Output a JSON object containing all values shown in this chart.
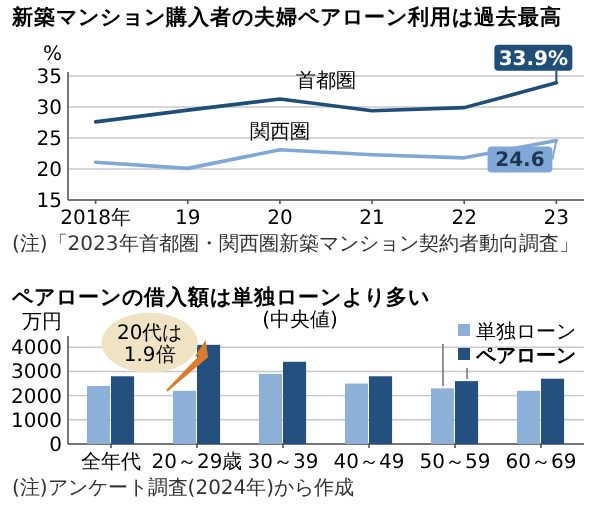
{
  "chart_data": [
    {
      "type": "line",
      "title": "新築マンション購入者の夫婦ペアローン利用は過去最高",
      "ylabel": "%",
      "categories": [
        "2018年",
        "19",
        "20",
        "21",
        "22",
        "23"
      ],
      "ylim": [
        15,
        35
      ],
      "yticks": [
        15,
        20,
        25,
        30,
        35
      ],
      "grid": "y",
      "marker": "none",
      "line_style": "solid",
      "series": [
        {
          "name": "首都圏",
          "color": "#1f4e79",
          "values": [
            27.6,
            29.5,
            31.3,
            29.4,
            29.9,
            33.9
          ],
          "value_labels": [
            null,
            null,
            null,
            null,
            null,
            "33.9%"
          ]
        },
        {
          "name": "関西圏",
          "color": "#7fa8d6",
          "values": [
            21.1,
            20.1,
            23.1,
            22.3,
            21.8,
            24.6
          ],
          "value_labels": [
            null,
            null,
            null,
            null,
            null,
            "24.6"
          ]
        }
      ],
      "annotations": [
        "(注)「2023年首都圏・関西圏新築マンション契約者動向調査」"
      ]
    },
    {
      "type": "bar",
      "title": "ペアローンの借入額は単独ローンより多い",
      "subtitle": "(中央値)",
      "ylabel": "万円",
      "categories": [
        "全年代",
        "20～29歳",
        "30～39",
        "40～49",
        "50～59",
        "60～69"
      ],
      "ylim": [
        0,
        4300
      ],
      "yticks": [
        0,
        1000,
        2000,
        3000,
        4000
      ],
      "grid": "y",
      "legend": "top right",
      "series": [
        {
          "name": "単独ローン",
          "color": "#8db0d8",
          "values": [
            2400,
            2200,
            2900,
            2500,
            2300,
            2200
          ]
        },
        {
          "name": "ペアローン",
          "color": "#23507f",
          "values": [
            2800,
            4100,
            3400,
            2800,
            2600,
            2700
          ]
        }
      ],
      "annotations": [
        {
          "text": "20代は1.9倍",
          "x": "20～29歳",
          "y": 4100
        },
        "(注)アンケート調査(2024年)から作成"
      ]
    }
  ]
}
